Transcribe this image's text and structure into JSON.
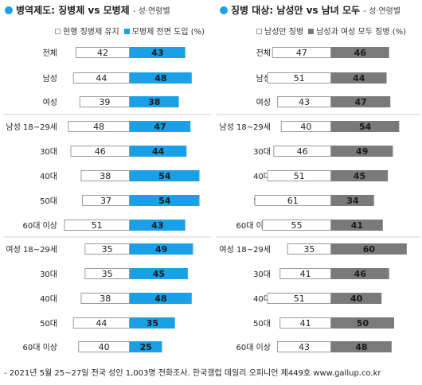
{
  "left_panel": {
    "title": "병역제도: 징병제 vs 모병제",
    "subtitle": "- 성·연령별",
    "legend": [
      "현행 징병제 유지",
      "모병제 전면 도입 (%)"
    ]
  },
  "right_panel": {
    "title": "징병 대상: 남성만 vs 남녀 모두",
    "subtitle": "- 성·연령별",
    "legend": [
      "남성만 징병",
      "남성과 여성 모두 징병 (%)"
    ]
  },
  "footer": "- 2021년 5월 25~27일 전국 성인 1,003명 전화조사. 한국갤럽 데일리 오피니언 제449호 www.gallup.co.kr",
  "colors": {
    "blue": "#1aa0e6",
    "gray": "#7a7a7a",
    "white_bar": "#ffffff",
    "outline": "#9a9a9a",
    "separator": "#cfcfcf"
  },
  "chart_data": [
    {
      "type": "bar",
      "orientation": "horizontal-diverging",
      "categories": [
        "전체",
        "남성",
        "여성",
        "남성 18~29세",
        "30대",
        "40대",
        "50대",
        "60대 이상",
        "여성 18~29세",
        "30대",
        "40대",
        "50대",
        "60대 이상"
      ],
      "series": [
        {
          "name": "현행 징병제 유지",
          "values": [
            42,
            44,
            39,
            48,
            46,
            38,
            37,
            51,
            35,
            35,
            38,
            44,
            40
          ]
        },
        {
          "name": "모병제 전면 도입 (%)",
          "values": [
            43,
            48,
            38,
            47,
            44,
            54,
            54,
            43,
            49,
            45,
            48,
            35,
            25
          ]
        }
      ],
      "groups": [
        [
          0,
          1,
          2
        ],
        [
          3,
          4,
          5,
          6,
          7
        ],
        [
          8,
          9,
          10,
          11,
          12
        ]
      ]
    },
    {
      "type": "bar",
      "orientation": "horizontal-diverging",
      "categories": [
        "전체",
        "남성",
        "여성",
        "남성 18~29세",
        "30대",
        "40대",
        "50대",
        "60대 이상",
        "여성 18~29세",
        "30대",
        "40대",
        "50대",
        "60대 이상"
      ],
      "series": [
        {
          "name": "남성만 징병",
          "values": [
            47,
            51,
            43,
            40,
            46,
            51,
            61,
            55,
            35,
            41,
            51,
            41,
            43
          ]
        },
        {
          "name": "남성과 여성 모두 징병 (%)",
          "values": [
            46,
            44,
            47,
            54,
            49,
            45,
            34,
            41,
            60,
            46,
            40,
            50,
            48
          ]
        }
      ],
      "groups": [
        [
          0,
          1,
          2
        ],
        [
          3,
          4,
          5,
          6,
          7
        ],
        [
          8,
          9,
          10,
          11,
          12
        ]
      ]
    }
  ]
}
